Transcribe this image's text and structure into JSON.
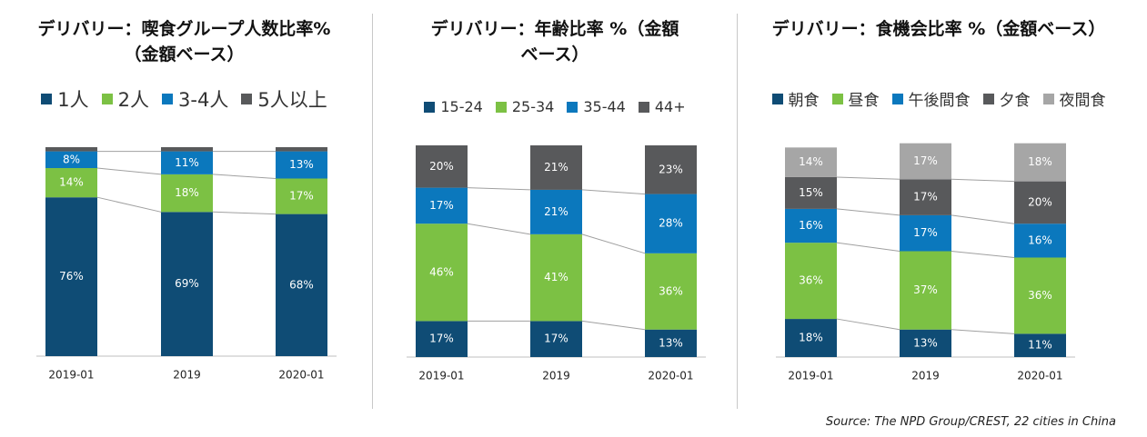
{
  "chart_data": [
    {
      "type": "stacked-bar",
      "title": "デリバリー：喫食グループ人数比率%（金額ベース）",
      "categories": [
        "2019-01",
        "2019",
        "2020-01"
      ],
      "ylim": [
        0,
        100
      ],
      "series": [
        {
          "name": "1人",
          "color": "#0f4c75",
          "values": [
            76,
            69,
            68
          ],
          "value_labels": [
            "76%",
            "69%",
            "68%"
          ]
        },
        {
          "name": "2人",
          "color": "#7cc144",
          "values": [
            14,
            18,
            17
          ],
          "value_labels": [
            "14%",
            "18%",
            "17%"
          ]
        },
        {
          "name": "3-4人",
          "color": "#0b78bd",
          "values": [
            8,
            11,
            13
          ],
          "value_labels": [
            "8%",
            "11%",
            "13%"
          ]
        },
        {
          "name": "5人以上",
          "color": "#58595b",
          "values": [
            2,
            2,
            2
          ]
        }
      ]
    },
    {
      "type": "stacked-bar",
      "title": "デリバリー：年齢比率 %（金額ベース）",
      "categories": [
        "2019-01",
        "2019",
        "2020-01"
      ],
      "ylim": [
        0,
        100
      ],
      "series": [
        {
          "name": "15-24",
          "color": "#0f4c75",
          "values": [
            17,
            17,
            13
          ],
          "value_labels": [
            "17%",
            "17%",
            "13%"
          ]
        },
        {
          "name": "25-34",
          "color": "#7cc144",
          "values": [
            46,
            41,
            36
          ],
          "value_labels": [
            "46%",
            "41%",
            "36%"
          ]
        },
        {
          "name": "35-44",
          "color": "#0b78bd",
          "values": [
            17,
            21,
            28
          ],
          "value_labels": [
            "17%",
            "21%",
            "28%"
          ]
        },
        {
          "name": "44+",
          "color": "#58595b",
          "values": [
            20,
            21,
            23
          ],
          "value_labels": [
            "20%",
            "21%",
            "23%"
          ]
        }
      ]
    },
    {
      "type": "stacked-bar",
      "title": "デリバリー：食機会比率 %（金額ベース）",
      "categories": [
        "2019-01",
        "2019",
        "2020-01"
      ],
      "ylim": [
        0,
        100
      ],
      "series": [
        {
          "name": "朝食",
          "color": "#0f4c75",
          "values": [
            18,
            13,
            11
          ],
          "value_labels": [
            "18%",
            "13%",
            "11%"
          ]
        },
        {
          "name": "昼食",
          "color": "#7cc144",
          "values": [
            36,
            37,
            36
          ],
          "value_labels": [
            "36%",
            "37%",
            "36%"
          ]
        },
        {
          "name": "午後間食",
          "color": "#0b78bd",
          "values": [
            16,
            17,
            16
          ],
          "value_labels": [
            "16%",
            "17%",
            "16%"
          ]
        },
        {
          "name": "夕食",
          "color": "#58595b",
          "values": [
            15,
            17,
            20
          ],
          "value_labels": [
            "15%",
            "17%",
            "20%"
          ]
        },
        {
          "name": "夜間食",
          "color": "#a6a6a6",
          "values": [
            14,
            17,
            18
          ],
          "value_labels": [
            "14%",
            "17%",
            "18%"
          ]
        }
      ]
    }
  ],
  "source": "Source: The NPD Group/CREST, 22 cities in China"
}
